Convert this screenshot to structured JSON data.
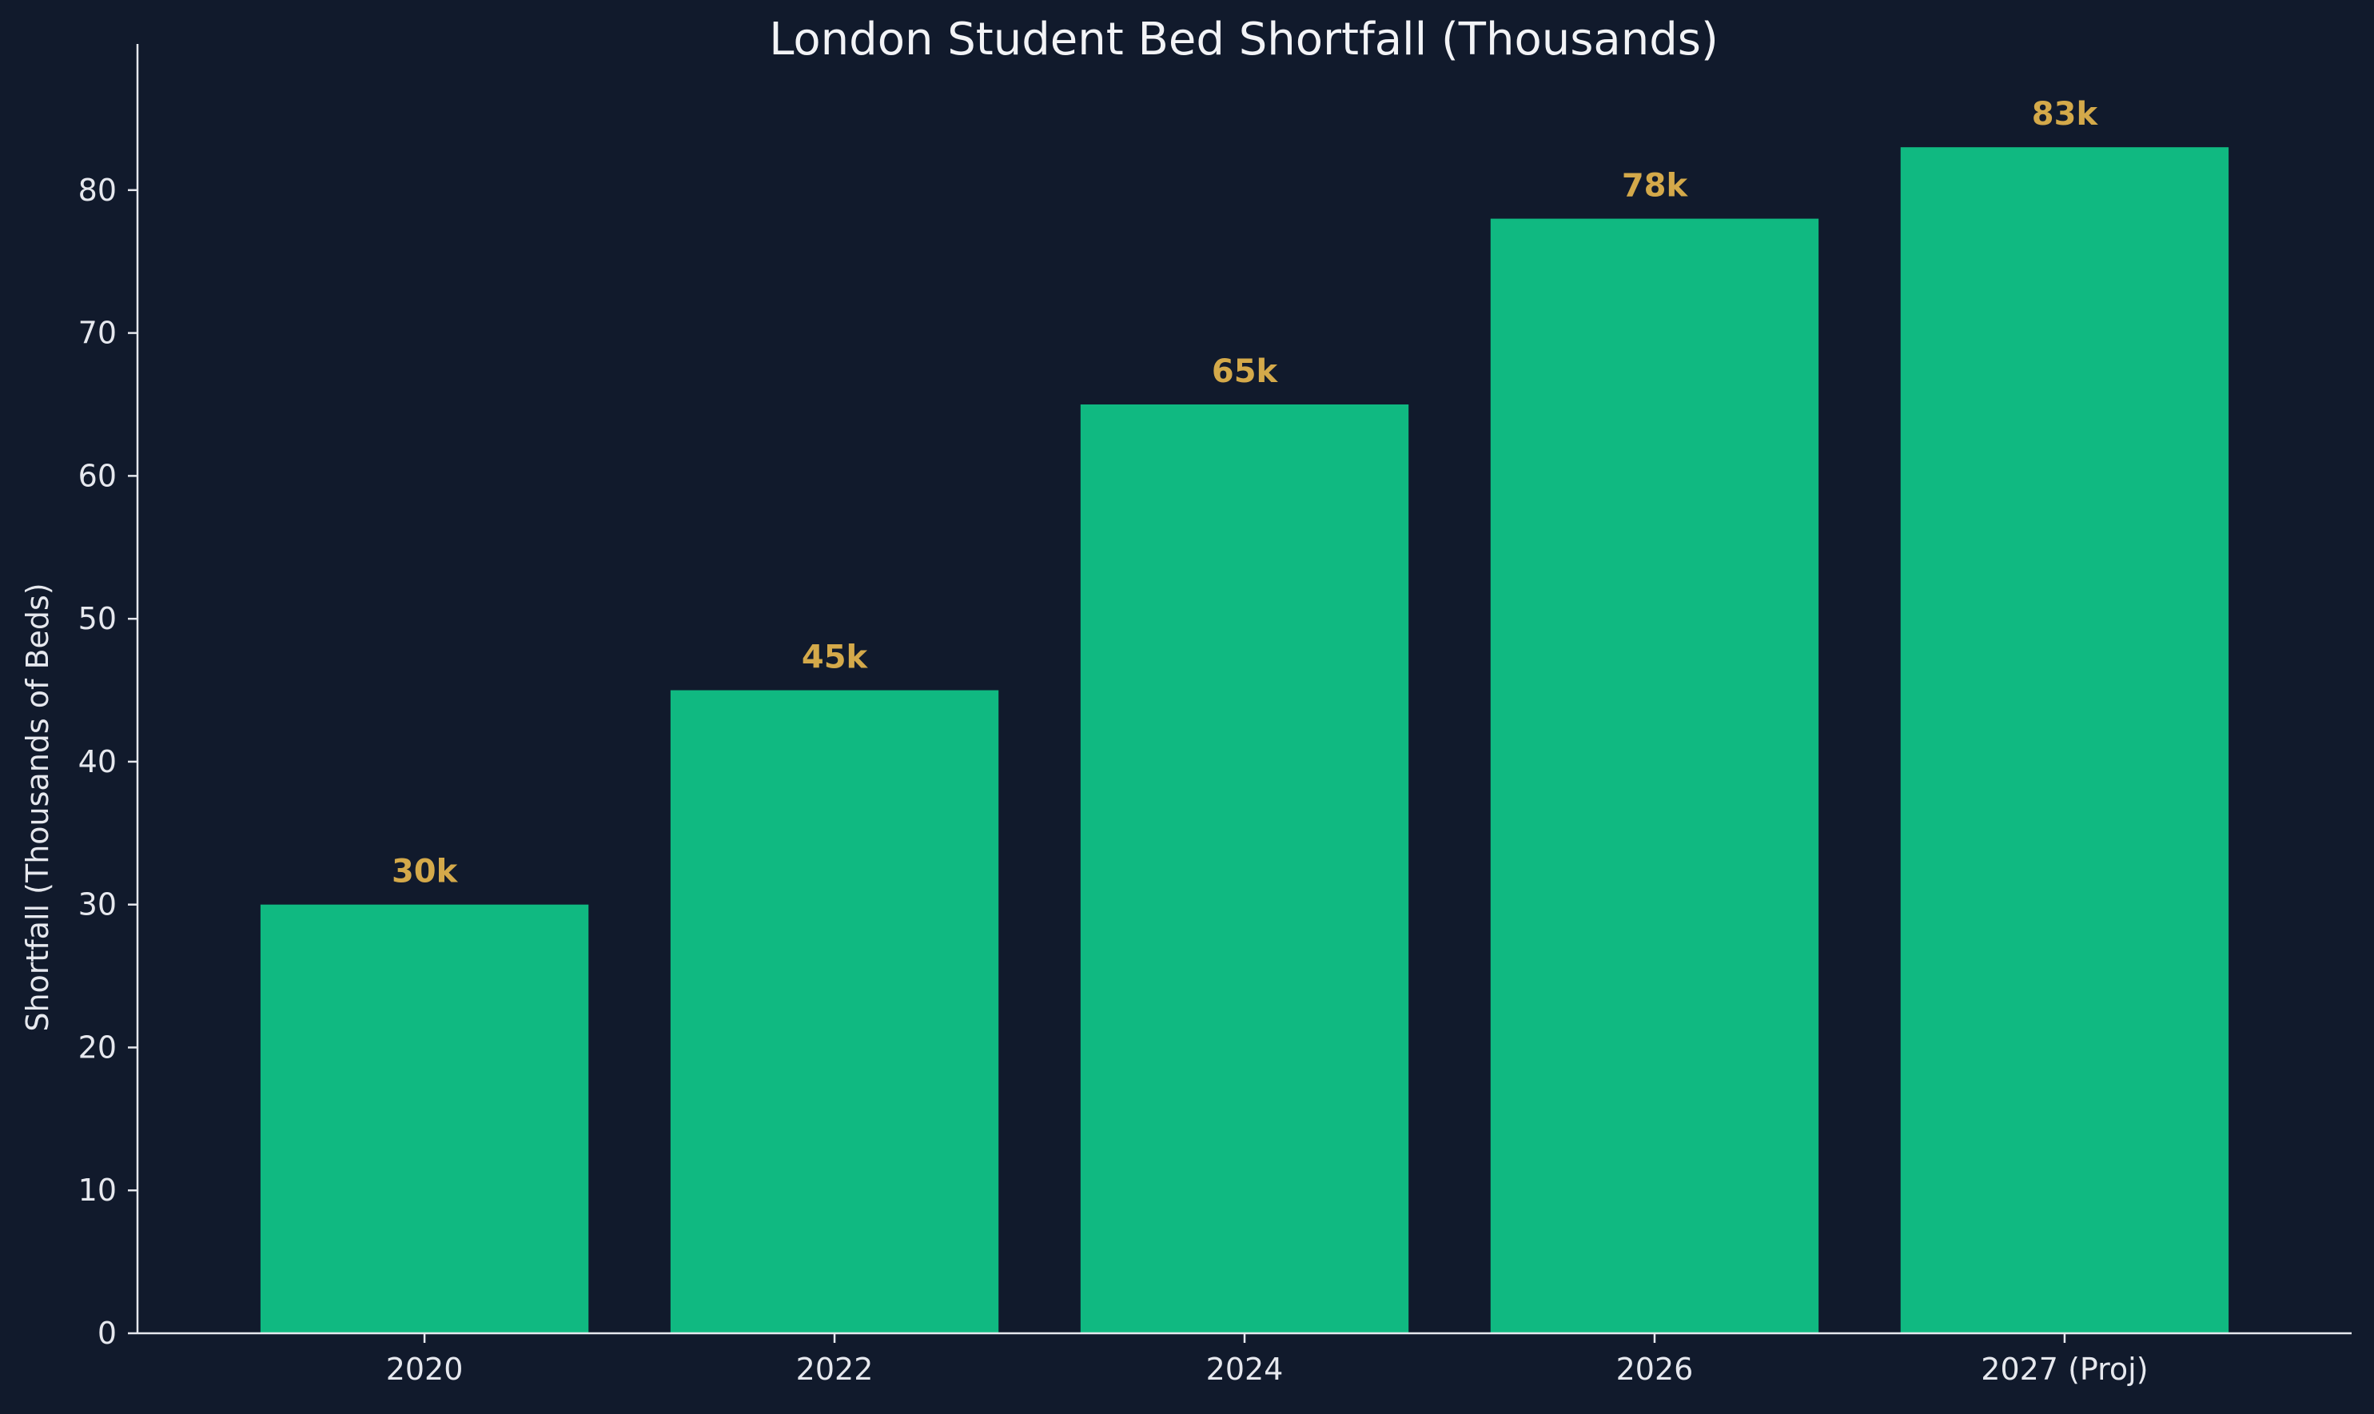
{
  "colors": {
    "background": "#111a2c",
    "bar": "#10b981",
    "value_label": "#d4a94a",
    "text": "#e6e8ee",
    "axis": "#e6e8ee"
  },
  "chart_data": {
    "type": "bar",
    "title": "London Student Bed Shortfall (Thousands)",
    "xlabel": "",
    "ylabel": "Shortfall (Thousands of Beds)",
    "categories": [
      "2020",
      "2022",
      "2024",
      "2026",
      "2027 (Proj)"
    ],
    "values": [
      30,
      45,
      65,
      78,
      83
    ],
    "value_labels": [
      "30k",
      "45k",
      "65k",
      "78k",
      "83k"
    ],
    "ylim": [
      0,
      87.15
    ],
    "yticks": [
      0,
      10,
      20,
      30,
      40,
      50,
      60,
      70,
      80
    ],
    "grid": false,
    "legend": "none"
  }
}
